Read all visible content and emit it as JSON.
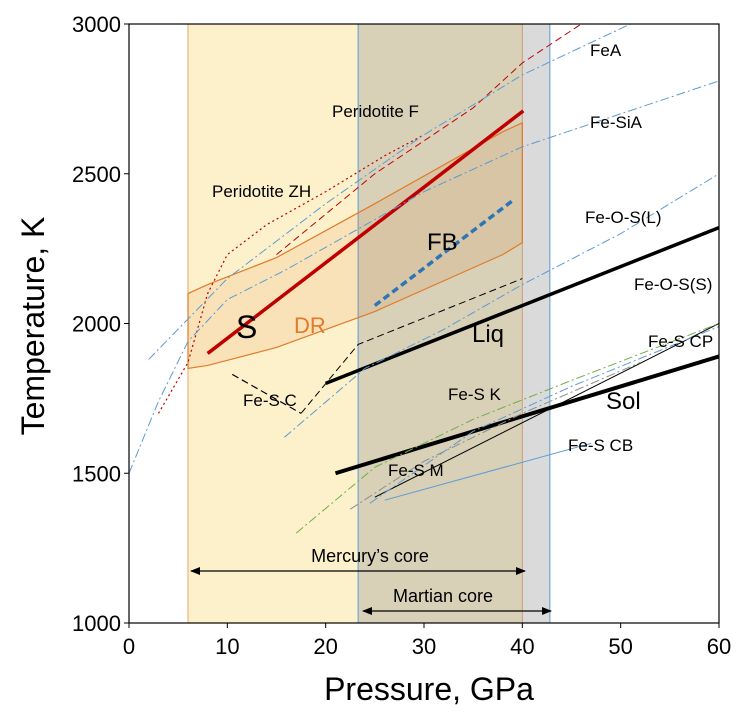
{
  "chart_data": {
    "type": "line",
    "xlabel": "Pressure, GPa",
    "ylabel": "Temperature, K",
    "xlim": [
      0,
      60
    ],
    "ylim": [
      1000,
      3000
    ],
    "x_ticks": [
      "0",
      "10",
      "20",
      "30",
      "40",
      "50",
      "60"
    ],
    "y_ticks": [
      "1000",
      "1500",
      "2000",
      "2500",
      "3000"
    ],
    "grid": false,
    "bands": [
      {
        "label": "Mercury’s core",
        "x": [
          6,
          40
        ],
        "color": "#fdf1cc"
      },
      {
        "label": "Martian core",
        "x": [
          23.3,
          42.8
        ],
        "color": "#8c8c8c"
      }
    ],
    "regions": [
      {
        "name": "DR",
        "color": "#e07b2a",
        "x": [
          6,
          8,
          15,
          25,
          38,
          40,
          40,
          38,
          25,
          15,
          8,
          6
        ],
        "y": [
          1850,
          1860,
          1920,
          2040,
          2230,
          2270,
          2670,
          2640,
          2400,
          2220,
          2130,
          2100
        ]
      }
    ],
    "series": [
      {
        "name": "S",
        "style": "solid",
        "color": "#c00000",
        "width": 3.5,
        "x": [
          8,
          40.1
        ],
        "y": [
          1900,
          2710
        ]
      },
      {
        "name": "FB",
        "style": "dashed",
        "color": "#2e75b6",
        "width": 3.5,
        "x": [
          25,
          39
        ],
        "y": [
          2060,
          2410
        ]
      },
      {
        "name": "Liq",
        "style": "solid",
        "color": "#000000",
        "width": 3.5,
        "x": [
          20,
          60
        ],
        "y": [
          1800,
          2320
        ]
      },
      {
        "name": "Sol",
        "style": "solid",
        "color": "#000000",
        "width": 4,
        "x": [
          21,
          60
        ],
        "y": [
          1500,
          1890
        ]
      },
      {
        "name": "Fe-S CP",
        "style": "solid",
        "color": "#000000",
        "width": 1,
        "x": [
          25,
          60
        ],
        "y": [
          1420,
          2000
        ]
      },
      {
        "name": "Fe-S CB",
        "style": "solid",
        "color": "#5b9bd5",
        "width": 1,
        "x": [
          26,
          47
        ],
        "y": [
          1410,
          1600
        ]
      },
      {
        "name": "Fe-S C",
        "style": "dashed",
        "color": "#000000",
        "width": 1.2,
        "x": [
          10.5,
          17.5
        ],
        "y": [
          1830,
          1700
        ]
      },
      {
        "name": "Fe-S K",
        "style": "dashed",
        "color": "#000000",
        "width": 1,
        "x": [
          17.5,
          23.3,
          40
        ],
        "y": [
          1700,
          1930,
          2150
        ]
      },
      {
        "name": "Fe-S M",
        "style": "dashdot",
        "color": "#8c8c8c",
        "width": 1,
        "x": [
          22.5,
          30,
          40,
          52
        ],
        "y": [
          1380,
          1540,
          1700,
          1870
        ]
      },
      {
        "name": "",
        "style": "dashdot",
        "color": "#70ad47",
        "width": 1,
        "x": [
          17,
          25,
          35,
          45,
          60
        ],
        "y": [
          1300,
          1520,
          1680,
          1810,
          2000
        ]
      },
      {
        "name": "Peridotite F",
        "style": "dashed",
        "color": "#c00000",
        "width": 1,
        "x": [
          15,
          25,
          35,
          40,
          46
        ],
        "y": [
          2230,
          2500,
          2720,
          2870,
          3000
        ]
      },
      {
        "name": "Peridotite ZH",
        "style": "dotted",
        "color": "#c00000",
        "width": 1.2,
        "x": [
          3,
          6,
          8,
          10,
          14,
          20,
          26,
          30
        ],
        "y": [
          1700,
          1870,
          2100,
          2230,
          2330,
          2440,
          2560,
          2630
        ]
      },
      {
        "name": "FeA",
        "style": "dashdot",
        "color": "#5b9bd5",
        "width": 1,
        "x": [
          2,
          10,
          20,
          30,
          40,
          51
        ],
        "y": [
          1880,
          2150,
          2400,
          2630,
          2830,
          3000
        ]
      },
      {
        "name": "Fe-SiA",
        "style": "dashdot",
        "color": "#5b9bd5",
        "width": 1,
        "x": [
          0,
          3,
          6,
          10,
          16,
          23,
          30,
          40,
          50,
          60
        ],
        "y": [
          1500,
          1740,
          1940,
          2080,
          2180,
          2310,
          2440,
          2590,
          2700,
          2810
        ]
      },
      {
        "name": "Fe-O-S(L)",
        "style": "dashdot",
        "color": "#5b9bd5",
        "width": 1,
        "x": [
          15.8,
          24,
          32,
          40,
          50,
          60
        ],
        "y": [
          1620,
          1850,
          1980,
          2130,
          2300,
          2500
        ]
      },
      {
        "name": "Fe-O-S(S)",
        "style": "dashdot",
        "color": "#5b9bd5",
        "width": 1,
        "x": [
          24.5,
          35,
          45,
          60
        ],
        "y": [
          1400,
          1640,
          1790,
          1990
        ]
      }
    ],
    "labels": {
      "s": "S",
      "dr": "DR",
      "fb": "FB",
      "liq": "Liq",
      "sol": "Sol",
      "peridotite_f": "Peridotite F",
      "peridotite_zh": "Peridotite ZH",
      "fea": "FeA",
      "fe_sia": "Fe-SiA",
      "fe_o_s_l": "Fe-O-S(L)",
      "fe_o_s_s": "Fe-O-S(S)",
      "fe_s_cp": "Fe-S CP",
      "fe_s_c": "Fe-S C",
      "fe_s_k": "Fe-S K",
      "fe_s_cb": "Fe-S CB",
      "fe_s_m": "Fe-S M",
      "mercury_core": "Mercury’s core",
      "martian_core": "Martian core"
    }
  }
}
